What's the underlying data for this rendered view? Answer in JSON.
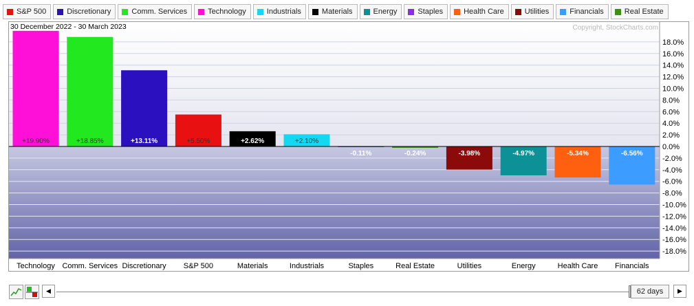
{
  "legend": [
    {
      "label": "S&P 500",
      "color": "#e81010"
    },
    {
      "label": "Discretionary",
      "color": "#2b10c0"
    },
    {
      "label": "Comm. Services",
      "color": "#22e81f"
    },
    {
      "label": "Technology",
      "color": "#ff10d8"
    },
    {
      "label": "Industrials",
      "color": "#12d9ef"
    },
    {
      "label": "Materials",
      "color": "#000000"
    },
    {
      "label": "Energy",
      "color": "#0e9196"
    },
    {
      "label": "Staples",
      "color": "#8a2ee8"
    },
    {
      "label": "Health Care",
      "color": "#ff6010"
    },
    {
      "label": "Utilities",
      "color": "#8b0b0b"
    },
    {
      "label": "Financials",
      "color": "#3c9cff"
    },
    {
      "label": "Real Estate",
      "color": "#3f8f12"
    }
  ],
  "chart_data": {
    "type": "bar",
    "date_range": "30 December 2022 - 30 March 2023",
    "copyright": "Copyright, StockCharts.com",
    "categories": [
      "Technology",
      "Comm. Services",
      "Discretionary",
      "S&P 500",
      "Materials",
      "Industrials",
      "Staples",
      "Real Estate",
      "Utilities",
      "Energy",
      "Health Care",
      "Financials"
    ],
    "values": [
      19.9,
      18.85,
      13.11,
      5.5,
      2.62,
      2.1,
      -0.11,
      -0.24,
      -3.98,
      -4.97,
      -5.34,
      -6.56
    ],
    "value_labels": [
      "+19.90%",
      "+18.85%",
      "+13.11%",
      "+5.50%",
      "+2.62%",
      "+2.10%",
      "-0.11%",
      "-0.24%",
      "-3.98%",
      "-4.97%",
      "-5.34%",
      "-6.56%"
    ],
    "colors": [
      "#ff10d8",
      "#22e81f",
      "#2b10c0",
      "#e81010",
      "#000000",
      "#12d9ef",
      "#8a2ee8",
      "#3f8f12",
      "#8b0b0b",
      "#0e9196",
      "#ff6010",
      "#3c9cff"
    ],
    "label_colors": [
      "#333333",
      "#333333",
      "#ffffff",
      "#333333",
      "#ffffff",
      "#333333",
      "#ffffff",
      "#ffffff",
      "#ffffff",
      "#ffffff",
      "#ffffff",
      "#ffffff"
    ],
    "yticks": [
      "18.0%",
      "16.0%",
      "14.0%",
      "12.0%",
      "10.0%",
      "8.0%",
      "6.0%",
      "4.0%",
      "2.0%",
      "0.0%",
      "-2.0%",
      "-4.0%",
      "-6.0%",
      "-8.0%",
      "-10.0%",
      "-12.0%",
      "-14.0%",
      "-16.0%",
      "-18.0%"
    ],
    "ylim": [
      -20,
      20
    ],
    "grid": true,
    "xlabel": "",
    "ylabel": ""
  },
  "controls": {
    "days": "62 days"
  }
}
